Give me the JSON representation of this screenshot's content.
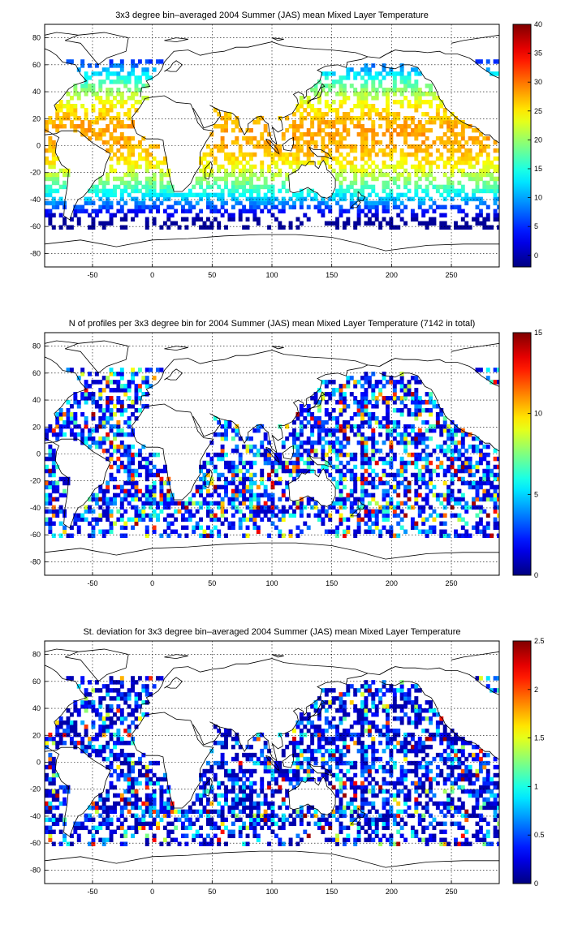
{
  "chart_data": [
    {
      "type": "heatmap",
      "title": "3x3 degree bin–averaged 2004 Summer (JAS) mean Mixed Layer Temperature",
      "xlim": [
        -90,
        290
      ],
      "ylim": [
        -90,
        90
      ],
      "xticks": [
        "-50",
        "0",
        "50",
        "100",
        "150",
        "200",
        "250"
      ],
      "yticks": [
        "80",
        "60",
        "40",
        "20",
        "0",
        "-20",
        "-40",
        "-60",
        "-80"
      ],
      "grid": true,
      "colorbar": {
        "min": -2,
        "max": 40,
        "ticks": [
          "40",
          "35",
          "30",
          "25",
          "20",
          "15",
          "10",
          "5",
          "0"
        ],
        "colormap": "jet"
      },
      "field": "sst"
    },
    {
      "type": "heatmap",
      "title": "N of profiles per 3x3 degree bin for 2004 Summer (JAS) mean Mixed Layer Temperature  (7142 in total)",
      "xlim": [
        -90,
        290
      ],
      "ylim": [
        -90,
        90
      ],
      "xticks": [
        "-50",
        "0",
        "50",
        "100",
        "150",
        "200",
        "250"
      ],
      "yticks": [
        "80",
        "60",
        "40",
        "20",
        "0",
        "-20",
        "-40",
        "-60",
        "-80"
      ],
      "grid": true,
      "colorbar": {
        "min": 0,
        "max": 15,
        "ticks": [
          "15",
          "10",
          "5",
          "0"
        ],
        "colormap": "jet"
      },
      "field": "count"
    },
    {
      "type": "heatmap",
      "title": "St. deviation for 3x3 degree bin–averaged 2004 Summer (JAS) mean Mixed Layer Temperature",
      "xlim": [
        -90,
        290
      ],
      "ylim": [
        -90,
        90
      ],
      "xticks": [
        "-50",
        "0",
        "50",
        "100",
        "150",
        "200",
        "250"
      ],
      "yticks": [
        "80",
        "60",
        "40",
        "20",
        "0",
        "-20",
        "-40",
        "-60",
        "-80"
      ],
      "grid": true,
      "colorbar": {
        "min": 0,
        "max": 2.5,
        "ticks": [
          "2.5",
          "2",
          "1.5",
          "1",
          "0.5",
          "0"
        ],
        "colormap": "jet"
      },
      "field": "std"
    }
  ],
  "colors": {
    "frame": "#000000",
    "coastline": "#000000",
    "grid": "#000000",
    "background": "#ffffff"
  }
}
